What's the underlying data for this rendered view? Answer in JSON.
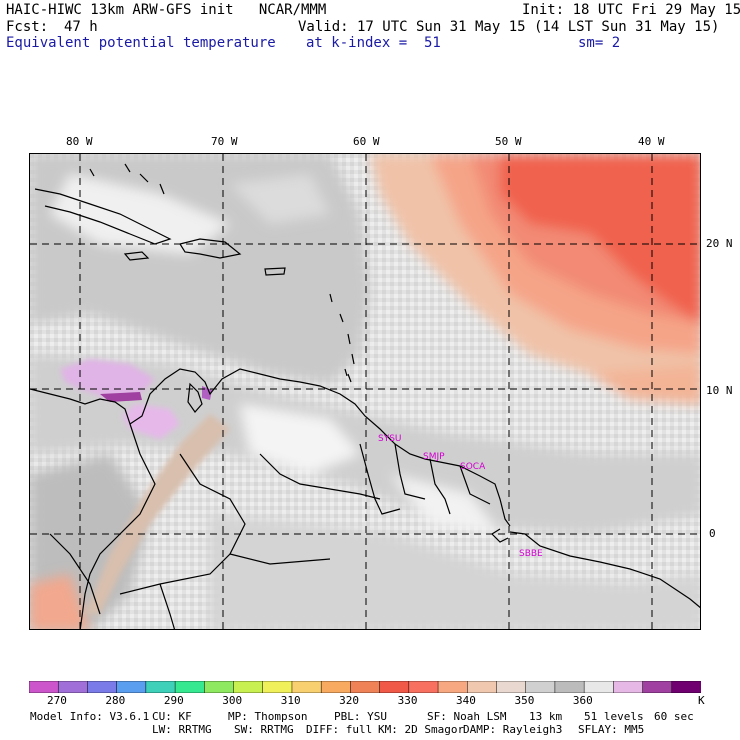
{
  "header": {
    "title_left": "HAIC-HIWC 13km ARW-GFS init   NCAR/MMM",
    "init": "Init: 18 UTC Fri 29 May 15",
    "fcst_label": "Fcst:",
    "fcst_value": "47 h",
    "valid": "Valid: 17 UTC Sun 31 May 15 (14 LST Sun 31 May 15)",
    "field_name": "Equivalent potential temperature",
    "level": "at k-index =  51",
    "smoothing": "sm= 2"
  },
  "map": {
    "lon_labels": [
      "80 W",
      "70 W",
      "60 W",
      "50 W",
      "40 W"
    ],
    "lat_labels": [
      "20 N",
      "10 N",
      "0"
    ],
    "station_labels": [
      "SYSU",
      "SMJP",
      "SOCA",
      "SBBE"
    ]
  },
  "colorbar": {
    "colors": [
      "#cc55cc",
      "#a070d8",
      "#7a7ae8",
      "#5a9ef0",
      "#3ed0b8",
      "#36e890",
      "#8ee860",
      "#c8f050",
      "#f0f05a",
      "#f8d070",
      "#f8aa60",
      "#f08258",
      "#f05848",
      "#f87060",
      "#f8a880",
      "#f0c8b0",
      "#e8d8d0",
      "#d0d0d0",
      "#bcbcbc",
      "#e8e8e8",
      "#e6b8e6",
      "#a040a0",
      "#700070"
    ],
    "tick_labels": [
      "270",
      "280",
      "290",
      "300",
      "310",
      "320",
      "330",
      "340",
      "350",
      "360"
    ],
    "unit": "K"
  },
  "footer": {
    "line1": [
      "Model Info: V3.6.1",
      "CU: KF",
      "MP: Thompson",
      "PBL: YSU",
      "SF: Noah LSM",
      "13 km",
      "51 levels",
      "60 sec"
    ],
    "line2": [
      "LW: RRTMG",
      "SW: RRTMG",
      "DIFF: full",
      "KM: 2D Smagor",
      "DAMP: Rayleigh3",
      "SFLAY: MM5"
    ]
  }
}
